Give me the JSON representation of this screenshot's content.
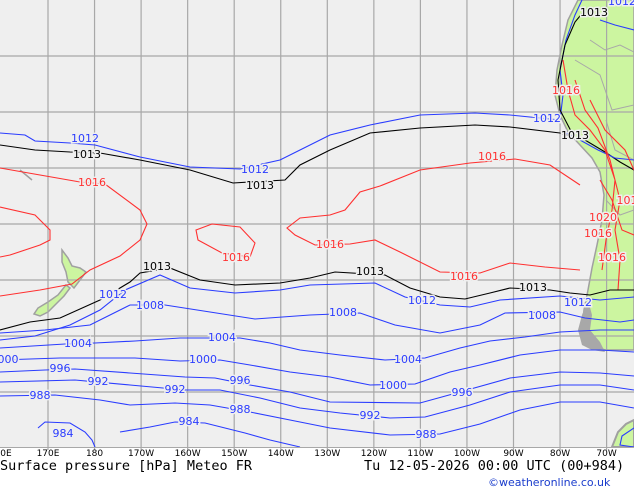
{
  "map": {
    "title": "Surface pressure [hPa] Meteo FR",
    "valid_time": "Tu 12-05-2026 00:00 UTC (00+984)",
    "credit": "©weatheronline.co.uk",
    "longitude_labels": [
      "0E",
      "170E",
      "180",
      "170W",
      "160W",
      "150W",
      "140W",
      "130W",
      "120W",
      "110W",
      "100W",
      "90W",
      "80W",
      "70W"
    ],
    "isobar_labels": [
      "1012",
      "1013",
      "1016",
      "1012",
      "1013",
      "1016",
      "1016",
      "1016",
      "1016",
      "1012",
      "1013",
      "1013",
      "1016",
      "1020",
      "1016",
      "1016",
      "101",
      "1013",
      "1012",
      "1013",
      "1012",
      "1013",
      "1012",
      "1008",
      "1008",
      "1008",
      "1004",
      "1004",
      "1004",
      "000",
      "1000",
      "1000",
      "996",
      "996",
      "996",
      "992",
      "992",
      "992",
      "988",
      "988",
      "988",
      "984",
      "984",
      "1012"
    ],
    "colors": {
      "low_isobar": "#2a3cff",
      "reference_isobar": "#000000",
      "high_isobar": "#ff3030",
      "land": "#ccf5a0",
      "sea": "#efefef",
      "grid": "#a8a8a8"
    }
  }
}
